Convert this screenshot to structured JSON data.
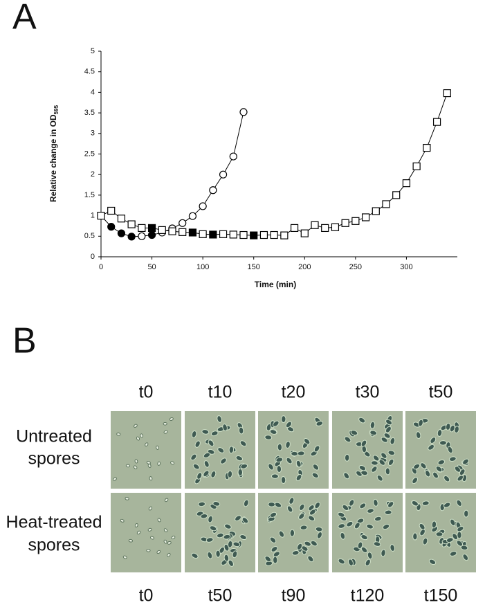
{
  "panel_a_label": "A",
  "panel_b_label": "B",
  "chart_data": {
    "type": "scatter-line",
    "xlabel": "Time (min)",
    "ylabel": "Relative change in OD",
    "ylabel_sub": "595",
    "xlim": [
      0,
      350
    ],
    "ylim": [
      0,
      5
    ],
    "xticks": [
      0,
      50,
      100,
      150,
      200,
      250,
      300
    ],
    "yticks": [
      0,
      0.5,
      1,
      1.5,
      2,
      2.5,
      3,
      3.5,
      4,
      4.5,
      5
    ],
    "color": "#000000",
    "series": [
      {
        "marker": "circle",
        "x": [
          0,
          10,
          20,
          30,
          40,
          50,
          60,
          70,
          80,
          90,
          100,
          110,
          120,
          130,
          140
        ],
        "values": [
          1.0,
          0.73,
          0.57,
          0.49,
          0.5,
          0.53,
          0.59,
          0.69,
          0.82,
          0.99,
          1.23,
          1.62,
          2.0,
          2.44,
          3.52
        ],
        "filled": [
          false,
          true,
          true,
          true,
          false,
          true,
          false,
          false,
          false,
          false,
          false,
          false,
          false,
          false,
          false
        ]
      },
      {
        "marker": "square",
        "x": [
          0,
          10,
          20,
          30,
          40,
          50,
          60,
          70,
          80,
          90,
          100,
          110,
          120,
          130,
          140,
          150,
          160,
          170,
          180,
          190,
          200,
          210,
          220,
          230,
          240,
          250,
          260,
          270,
          280,
          290,
          300,
          310,
          320,
          330,
          340
        ],
        "values": [
          1.0,
          1.12,
          0.93,
          0.79,
          0.7,
          0.7,
          0.65,
          0.62,
          0.6,
          0.59,
          0.55,
          0.54,
          0.55,
          0.54,
          0.53,
          0.52,
          0.53,
          0.53,
          0.52,
          0.7,
          0.57,
          0.77,
          0.7,
          0.72,
          0.82,
          0.87,
          0.96,
          1.11,
          1.28,
          1.5,
          1.79,
          2.2,
          2.65,
          3.28,
          3.98
        ],
        "filled": [
          false,
          false,
          false,
          false,
          false,
          true,
          false,
          false,
          false,
          true,
          false,
          true,
          false,
          false,
          false,
          true,
          false,
          false,
          false,
          false,
          false,
          false,
          false,
          false,
          false,
          false,
          false,
          false,
          false,
          false,
          false,
          false,
          false,
          false,
          false
        ]
      }
    ]
  },
  "micrographs": {
    "top_labels": [
      "t0",
      "t10",
      "t20",
      "t30",
      "t50"
    ],
    "bottom_labels": [
      "t0",
      "t50",
      "t90",
      "t120",
      "t150"
    ],
    "rows": [
      [
        "Untreated",
        "spores"
      ],
      [
        "Heat-treated",
        "spores"
      ]
    ]
  }
}
